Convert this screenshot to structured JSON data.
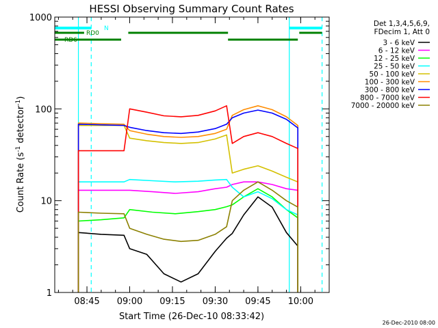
{
  "chart_data": {
    "type": "line",
    "title": "HESSI Observing Summary Count Rates",
    "xlabel": "Start Time (26-Dec-10 08:33:42)",
    "ylabel": "Count Rate (s⁻¹ detector⁻¹)",
    "y_scale": "log",
    "ylim": [
      1,
      1000
    ],
    "xlim": [
      "08:33:42",
      "10:10:00"
    ],
    "x_ticks": [
      "08:45",
      "09:00",
      "09:15",
      "09:30",
      "09:45",
      "10:00"
    ],
    "y_ticks": [
      "1",
      "10",
      "100",
      "1000"
    ],
    "grid": false,
    "legend_position": "top-right",
    "legend_header": [
      "Det 1,3,4,5,6,9,",
      "FDecim 1, Att 0"
    ],
    "footer_date": "26-Dec-2010 08:00",
    "time_segments": [
      [
        "08:42:00",
        "08:59:30"
      ],
      [
        "09:34:30",
        "09:59:00"
      ]
    ],
    "series": [
      {
        "name": "3 - 6 keV",
        "color": "#000000",
        "points": [
          [
            "08:42",
            "4.5"
          ],
          [
            "08:50",
            "4.3"
          ],
          [
            "08:58",
            "4.2"
          ],
          [
            "09:00",
            "3.0"
          ],
          [
            "09:06",
            "2.6"
          ],
          [
            "09:12",
            "1.6"
          ],
          [
            "09:18",
            "1.3"
          ],
          [
            "09:24",
            "1.6"
          ],
          [
            "09:30",
            "2.8"
          ],
          [
            "09:34",
            "3.9"
          ],
          [
            "09:36",
            "4.4"
          ],
          [
            "09:40",
            "7.0"
          ],
          [
            "09:45",
            "11"
          ],
          [
            "09:50",
            "8.5"
          ],
          [
            "09:55",
            "4.5"
          ],
          [
            "09:59",
            "3.2"
          ]
        ]
      },
      {
        "name": "6 - 12 keV",
        "color": "#ff00ff",
        "points": [
          [
            "08:42",
            "13"
          ],
          [
            "08:50",
            "13"
          ],
          [
            "08:58",
            "13"
          ],
          [
            "09:00",
            "13"
          ],
          [
            "09:08",
            "12.5"
          ],
          [
            "09:16",
            "12"
          ],
          [
            "09:24",
            "12.5"
          ],
          [
            "09:30",
            "13.5"
          ],
          [
            "09:34",
            "14"
          ],
          [
            "09:36",
            "15"
          ],
          [
            "09:40",
            "16"
          ],
          [
            "09:45",
            "16"
          ],
          [
            "09:50",
            "15"
          ],
          [
            "09:55",
            "13.5"
          ],
          [
            "09:59",
            "13"
          ]
        ]
      },
      {
        "name": "12 - 25 keV",
        "color": "#00ff00",
        "points": [
          [
            "08:42",
            "6"
          ],
          [
            "08:50",
            "6.2"
          ],
          [
            "08:58",
            "6.5"
          ],
          [
            "09:00",
            "8"
          ],
          [
            "09:08",
            "7.5"
          ],
          [
            "09:16",
            "7.2"
          ],
          [
            "09:24",
            "7.6"
          ],
          [
            "09:30",
            "8"
          ],
          [
            "09:34",
            "8.6"
          ],
          [
            "09:36",
            "9"
          ],
          [
            "09:40",
            "11"
          ],
          [
            "09:45",
            "13.5"
          ],
          [
            "09:50",
            "11"
          ],
          [
            "09:55",
            "8"
          ],
          [
            "09:59",
            "6.5"
          ]
        ]
      },
      {
        "name": "25 - 50 keV",
        "color": "#00ffff",
        "points": [
          [
            "08:42",
            "16"
          ],
          [
            "08:50",
            "16"
          ],
          [
            "08:58",
            "16"
          ],
          [
            "09:00",
            "17"
          ],
          [
            "09:08",
            "16.5"
          ],
          [
            "09:16",
            "16"
          ],
          [
            "09:24",
            "16.3"
          ],
          [
            "09:30",
            "16.8"
          ],
          [
            "09:34",
            "17"
          ],
          [
            "09:36",
            "14"
          ],
          [
            "09:40",
            "11"
          ],
          [
            "09:45",
            "12.5"
          ],
          [
            "09:50",
            "10.5"
          ],
          [
            "09:55",
            "8"
          ],
          [
            "09:59",
            "7"
          ]
        ]
      },
      {
        "name": "50 - 100 keV",
        "color": "#d4c000",
        "points": [
          [
            "08:42",
            "66"
          ],
          [
            "08:50",
            "66"
          ],
          [
            "08:58",
            "66"
          ],
          [
            "09:00",
            "48"
          ],
          [
            "09:06",
            "45"
          ],
          [
            "09:12",
            "43"
          ],
          [
            "09:18",
            "42"
          ],
          [
            "09:24",
            "43"
          ],
          [
            "09:30",
            "47"
          ],
          [
            "09:34",
            "52"
          ],
          [
            "09:36",
            "20"
          ],
          [
            "09:40",
            "22"
          ],
          [
            "09:45",
            "24"
          ],
          [
            "09:50",
            "21"
          ],
          [
            "09:55",
            "18"
          ],
          [
            "09:59",
            "16"
          ]
        ]
      },
      {
        "name": "100 - 300 keV",
        "color": "#ff8c00",
        "points": [
          [
            "08:42",
            "70"
          ],
          [
            "08:50",
            "69"
          ],
          [
            "08:58",
            "68"
          ],
          [
            "09:00",
            "58"
          ],
          [
            "09:06",
            "53"
          ],
          [
            "09:12",
            "50"
          ],
          [
            "09:18",
            "49"
          ],
          [
            "09:24",
            "50"
          ],
          [
            "09:30",
            "54"
          ],
          [
            "09:34",
            "60"
          ],
          [
            "09:36",
            "85"
          ],
          [
            "09:40",
            "98"
          ],
          [
            "09:45",
            "108"
          ],
          [
            "09:50",
            "98"
          ],
          [
            "09:55",
            "82"
          ],
          [
            "09:59",
            "66"
          ]
        ]
      },
      {
        "name": "300 - 800 keV",
        "color": "#0000ff",
        "points": [
          [
            "08:42",
            "68"
          ],
          [
            "08:50",
            "67"
          ],
          [
            "08:58",
            "66"
          ],
          [
            "09:00",
            "63"
          ],
          [
            "09:06",
            "58"
          ],
          [
            "09:12",
            "55"
          ],
          [
            "09:18",
            "54"
          ],
          [
            "09:24",
            "56"
          ],
          [
            "09:30",
            "61"
          ],
          [
            "09:34",
            "68"
          ],
          [
            "09:36",
            "80"
          ],
          [
            "09:40",
            "90"
          ],
          [
            "09:45",
            "97"
          ],
          [
            "09:50",
            "90"
          ],
          [
            "09:55",
            "77"
          ],
          [
            "09:59",
            "62"
          ]
        ]
      },
      {
        "name": "800 - 7000 keV",
        "color": "#ff0000",
        "points": [
          [
            "08:42",
            "35"
          ],
          [
            "08:50",
            "35"
          ],
          [
            "08:58",
            "35"
          ],
          [
            "09:00",
            "100"
          ],
          [
            "09:06",
            "92"
          ],
          [
            "09:12",
            "84"
          ],
          [
            "09:18",
            "82"
          ],
          [
            "09:24",
            "85"
          ],
          [
            "09:30",
            "95"
          ],
          [
            "09:34",
            "108"
          ],
          [
            "09:36",
            "42"
          ],
          [
            "09:40",
            "50"
          ],
          [
            "09:45",
            "55"
          ],
          [
            "09:50",
            "50"
          ],
          [
            "09:55",
            "42"
          ],
          [
            "09:59",
            "37"
          ]
        ]
      },
      {
        "name": "7000 - 20000 keV",
        "color": "#8b8000",
        "points": [
          [
            "08:42",
            "7.5"
          ],
          [
            "08:50",
            "7.3"
          ],
          [
            "08:58",
            "7.2"
          ],
          [
            "09:00",
            "5.0"
          ],
          [
            "09:06",
            "4.3"
          ],
          [
            "09:12",
            "3.8"
          ],
          [
            "09:18",
            "3.6"
          ],
          [
            "09:24",
            "3.7"
          ],
          [
            "09:30",
            "4.3"
          ],
          [
            "09:34",
            "5.2"
          ],
          [
            "09:36",
            "10"
          ],
          [
            "09:40",
            "13"
          ],
          [
            "09:45",
            "16"
          ],
          [
            "09:50",
            "13"
          ],
          [
            "09:55",
            "10"
          ],
          [
            "09:59",
            "8.5"
          ]
        ]
      }
    ],
    "annotations": [
      {
        "label": "N",
        "color": "#00ffff",
        "intervals": [
          [
            "08:33:42",
            "08:46:30"
          ],
          [
            "09:56:00",
            "10:07:30"
          ]
        ]
      },
      {
        "label": "RD0",
        "color": "#008000",
        "intervals": [
          [
            "08:33:42",
            "08:44:00"
          ],
          [
            "08:59:30",
            "09:34:30"
          ],
          [
            "09:59:30",
            "10:07:30"
          ]
        ]
      },
      {
        "label": "RD6",
        "color": "#008000",
        "intervals": [
          [
            "08:33:42",
            "08:57:00"
          ],
          [
            "09:34:30",
            "09:59:00"
          ]
        ]
      }
    ],
    "vertical_markers": [
      {
        "time": "08:42:00",
        "color": "#00ffff",
        "style": "solid"
      },
      {
        "time": "08:46:30",
        "color": "#00ffff",
        "style": "dashed"
      },
      {
        "time": "09:56:00",
        "color": "#00ffff",
        "style": "solid"
      },
      {
        "time": "10:07:30",
        "color": "#00ffff",
        "style": "dashed"
      }
    ]
  }
}
